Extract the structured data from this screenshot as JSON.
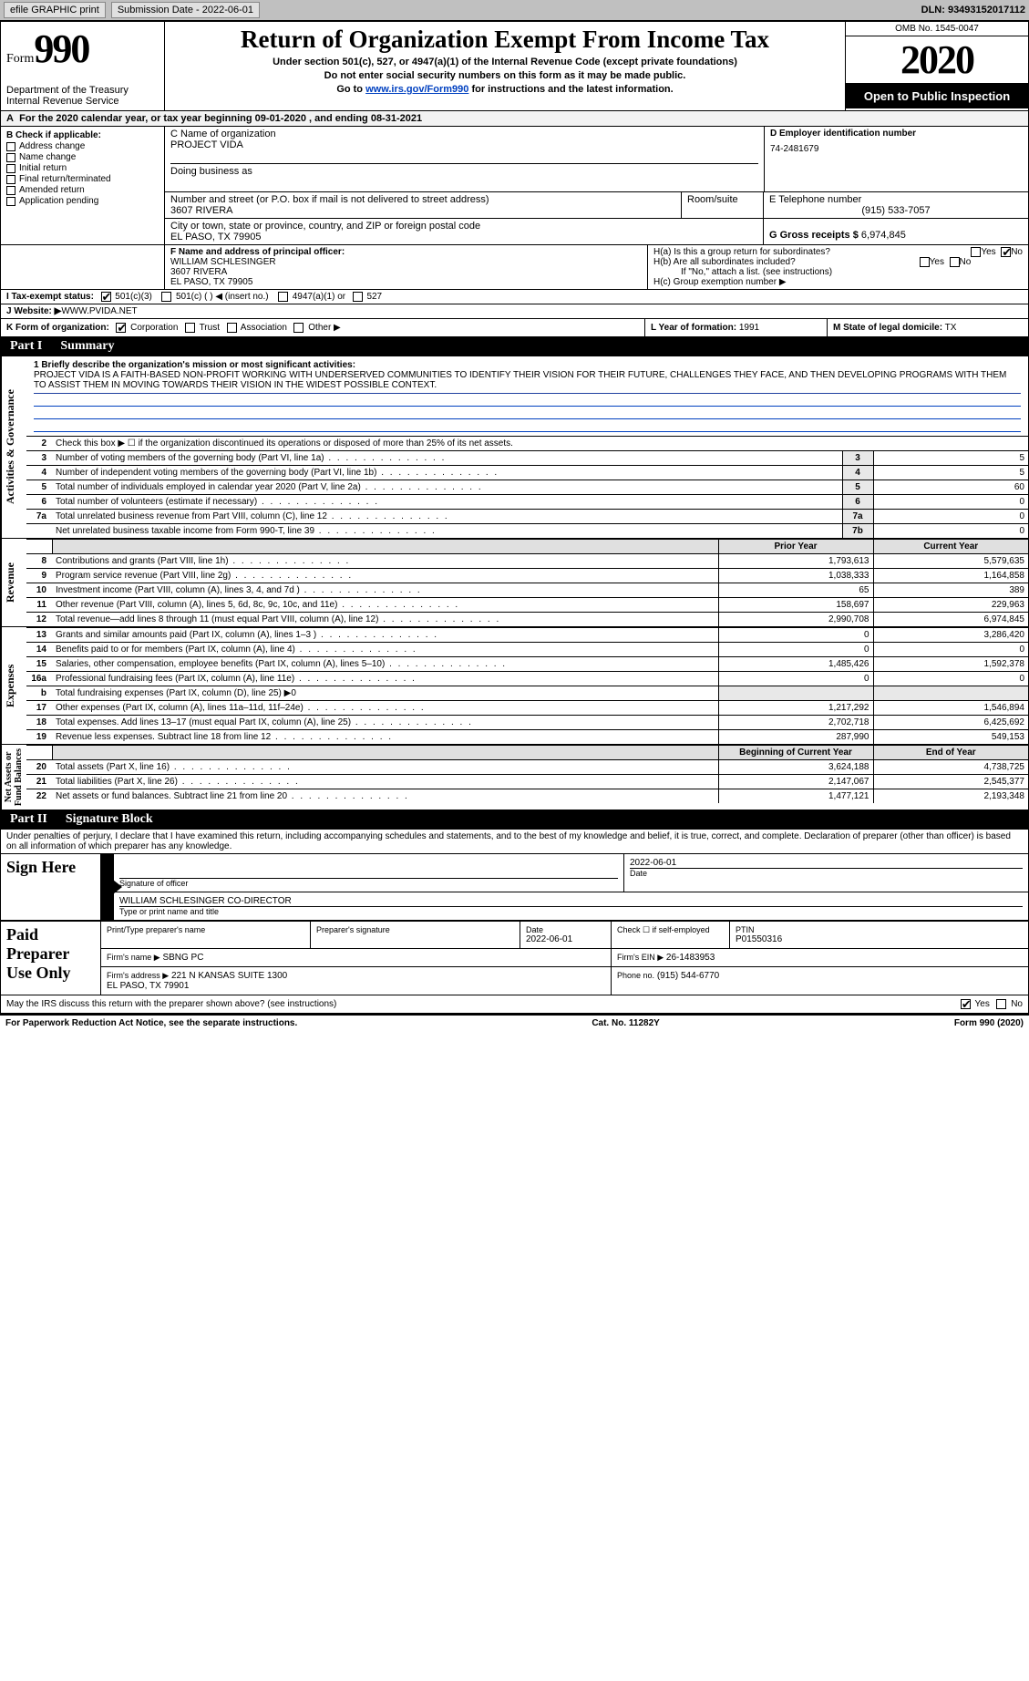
{
  "topbar": {
    "efile_label": "efile GRAPHIC print",
    "sub_label": "Submission Date - 2022-06-01",
    "dln_label": "DLN: 93493152017112"
  },
  "header": {
    "form_word": "Form",
    "form_num": "990",
    "dept": "Department of the Treasury\nInternal Revenue Service",
    "title": "Return of Organization Exempt From Income Tax",
    "sub1": "Under section 501(c), 527, or 4947(a)(1) of the Internal Revenue Code (except private foundations)",
    "sub2": "Do not enter social security numbers on this form as it may be made public.",
    "sub3_pre": "Go to ",
    "sub3_link": "www.irs.gov/Form990",
    "sub3_post": " for instructions and the latest information.",
    "omb": "OMB No. 1545-0047",
    "year": "2020",
    "open": "Open to Public Inspection"
  },
  "period": "For the 2020 calendar year, or tax year beginning 09-01-2020   , and ending 08-31-2021",
  "box_b": {
    "hdr": "B Check if applicable:",
    "items": [
      "Address change",
      "Name change",
      "Initial return",
      "Final return/terminated",
      "Amended return",
      "Application pending"
    ]
  },
  "box_c": {
    "name_lbl": "C Name of organization",
    "name": "PROJECT VIDA",
    "dba_lbl": "Doing business as",
    "addr_lbl": "Number and street (or P.O. box if mail is not delivered to street address)",
    "room_lbl": "Room/suite",
    "addr": "3607 RIVERA",
    "city_lbl": "City or town, state or province, country, and ZIP or foreign postal code",
    "city": "EL PASO, TX  79905"
  },
  "box_d": {
    "ein_lbl": "D Employer identification number",
    "ein": "74-2481679",
    "tel_lbl": "E Telephone number",
    "tel": "(915) 533-7057",
    "gross_lbl": "G Gross receipts $",
    "gross": "6,974,845"
  },
  "box_f": {
    "lbl": "F  Name and address of principal officer:",
    "name": "WILLIAM SCHLESINGER",
    "addr1": "3607 RIVERA",
    "addr2": "EL PASO, TX  79905"
  },
  "box_h": {
    "a": "H(a)  Is this a group return for subordinates?",
    "b": "H(b)  Are all subordinates included?",
    "b2": "If \"No,\" attach a list. (see instructions)",
    "c": "H(c)  Group exemption number ▶",
    "yes": "Yes",
    "no": "No"
  },
  "row_i": {
    "lbl": "I   Tax-exempt status:",
    "opts": [
      "501(c)(3)",
      "501(c) (  ) ◀ (insert no.)",
      "4947(a)(1) or",
      "527"
    ]
  },
  "row_j": {
    "lbl": "J   Website: ▶",
    "val": " WWW.PVIDA.NET"
  },
  "row_k": {
    "lbl": "K Form of organization:",
    "opts": [
      "Corporation",
      "Trust",
      "Association",
      "Other ▶"
    ],
    "l_lbl": "L Year of formation:",
    "l_val": "1991",
    "m_lbl": "M State of legal domicile:",
    "m_val": "TX"
  },
  "parts": {
    "p1_num": "Part I",
    "p1_title": "Summary",
    "p2_num": "Part II",
    "p2_title": "Signature Block"
  },
  "vlabels": {
    "ag": "Activities & Governance",
    "rev": "Revenue",
    "exp": "Expenses",
    "na": "Net Assets or\nFund Balances"
  },
  "summary": {
    "line1": "1  Briefly describe the organization's mission or most significant activities:",
    "mission": "PROJECT VIDA IS A FAITH-BASED NON-PROFIT WORKING WITH UNDERSERVED COMMUNITIES TO IDENTIFY THEIR VISION FOR THEIR FUTURE, CHALLENGES THEY FACE, AND THEN DEVELOPING PROGRAMS WITH THEM TO ASSIST THEM IN MOVING TOWARDS THEIR VISION IN THE WIDEST POSSIBLE CONTEXT.",
    "line2": "Check this box ▶ ☐ if the organization discontinued its operations or disposed of more than 25% of its net assets.",
    "rows_gov": [
      {
        "n": "3",
        "d": "Number of voting members of the governing body (Part VI, line 1a)",
        "k": "3",
        "v": "5"
      },
      {
        "n": "4",
        "d": "Number of independent voting members of the governing body (Part VI, line 1b)",
        "k": "4",
        "v": "5"
      },
      {
        "n": "5",
        "d": "Total number of individuals employed in calendar year 2020 (Part V, line 2a)",
        "k": "5",
        "v": "60"
      },
      {
        "n": "6",
        "d": "Total number of volunteers (estimate if necessary)",
        "k": "6",
        "v": "0"
      },
      {
        "n": "7a",
        "d": "Total unrelated business revenue from Part VIII, column (C), line 12",
        "k": "7a",
        "v": "0"
      },
      {
        "n": "",
        "d": "Net unrelated business taxable income from Form 990-T, line 39",
        "k": "7b",
        "v": "0"
      }
    ],
    "hdr_prior": "Prior Year",
    "hdr_curr": "Current Year",
    "rows_rev": [
      {
        "n": "8",
        "d": "Contributions and grants (Part VIII, line 1h)",
        "p": "1,793,613",
        "c": "5,579,635"
      },
      {
        "n": "9",
        "d": "Program service revenue (Part VIII, line 2g)",
        "p": "1,038,333",
        "c": "1,164,858"
      },
      {
        "n": "10",
        "d": "Investment income (Part VIII, column (A), lines 3, 4, and 7d )",
        "p": "65",
        "c": "389"
      },
      {
        "n": "11",
        "d": "Other revenue (Part VIII, column (A), lines 5, 6d, 8c, 9c, 10c, and 11e)",
        "p": "158,697",
        "c": "229,963"
      },
      {
        "n": "12",
        "d": "Total revenue—add lines 8 through 11 (must equal Part VIII, column (A), line 12)",
        "p": "2,990,708",
        "c": "6,974,845"
      }
    ],
    "rows_exp": [
      {
        "n": "13",
        "d": "Grants and similar amounts paid (Part IX, column (A), lines 1–3 )",
        "p": "0",
        "c": "3,286,420"
      },
      {
        "n": "14",
        "d": "Benefits paid to or for members (Part IX, column (A), line 4)",
        "p": "0",
        "c": "0"
      },
      {
        "n": "15",
        "d": "Salaries, other compensation, employee benefits (Part IX, column (A), lines 5–10)",
        "p": "1,485,426",
        "c": "1,592,378"
      },
      {
        "n": "16a",
        "d": "Professional fundraising fees (Part IX, column (A), line 11e)",
        "p": "0",
        "c": "0"
      },
      {
        "n": "b",
        "d": "Total fundraising expenses (Part IX, column (D), line 25) ▶0",
        "p": "",
        "c": "",
        "single": true
      },
      {
        "n": "17",
        "d": "Other expenses (Part IX, column (A), lines 11a–11d, 11f–24e)",
        "p": "1,217,292",
        "c": "1,546,894"
      },
      {
        "n": "18",
        "d": "Total expenses. Add lines 13–17 (must equal Part IX, column (A), line 25)",
        "p": "2,702,718",
        "c": "6,425,692"
      },
      {
        "n": "19",
        "d": "Revenue less expenses. Subtract line 18 from line 12",
        "p": "287,990",
        "c": "549,153"
      }
    ],
    "hdr_beg": "Beginning of Current Year",
    "hdr_end": "End of Year",
    "rows_na": [
      {
        "n": "20",
        "d": "Total assets (Part X, line 16)",
        "p": "3,624,188",
        "c": "4,738,725"
      },
      {
        "n": "21",
        "d": "Total liabilities (Part X, line 26)",
        "p": "2,147,067",
        "c": "2,545,377"
      },
      {
        "n": "22",
        "d": "Net assets or fund balances. Subtract line 21 from line 20",
        "p": "1,477,121",
        "c": "2,193,348"
      }
    ]
  },
  "sig": {
    "decl": "Under penalties of perjury, I declare that I have examined this return, including accompanying schedules and statements, and to the best of my knowledge and belief, it is true, correct, and complete. Declaration of preparer (other than officer) is based on all information of which preparer has any knowledge.",
    "sign_here": "Sign Here",
    "sig_officer_lbl": "Signature of officer",
    "date_lbl": "Date",
    "sig_date": "2022-06-01",
    "name_title": "WILLIAM SCHLESINGER  CO-DIRECTOR",
    "name_title_lbl": "Type or print name and title",
    "paid": "Paid Preparer Use Only",
    "prep_name_lbl": "Print/Type preparer's name",
    "prep_sig_lbl": "Preparer's signature",
    "prep_date_lbl": "Date",
    "prep_date": "2022-06-01",
    "self_lbl": "Check ☐ if self-employed",
    "ptin_lbl": "PTIN",
    "ptin": "P01550316",
    "firm_name_lbl": "Firm's name    ▶",
    "firm_name": "SBNG PC",
    "firm_ein_lbl": "Firm's EIN ▶",
    "firm_ein": "26-1483953",
    "firm_addr_lbl": "Firm's address ▶",
    "firm_addr": "221 N KANSAS SUITE 1300\nEL PASO, TX  79901",
    "phone_lbl": "Phone no.",
    "phone": "(915) 544-6770",
    "discuss": "May the IRS discuss this return with the preparer shown above? (see instructions)"
  },
  "footer": {
    "left": "For Paperwork Reduction Act Notice, see the separate instructions.",
    "mid": "Cat. No. 11282Y",
    "right": "Form 990 (2020)"
  },
  "colors": {
    "accent": "#0040c0",
    "dark": "#000000",
    "grey": "#e0e0e0"
  }
}
